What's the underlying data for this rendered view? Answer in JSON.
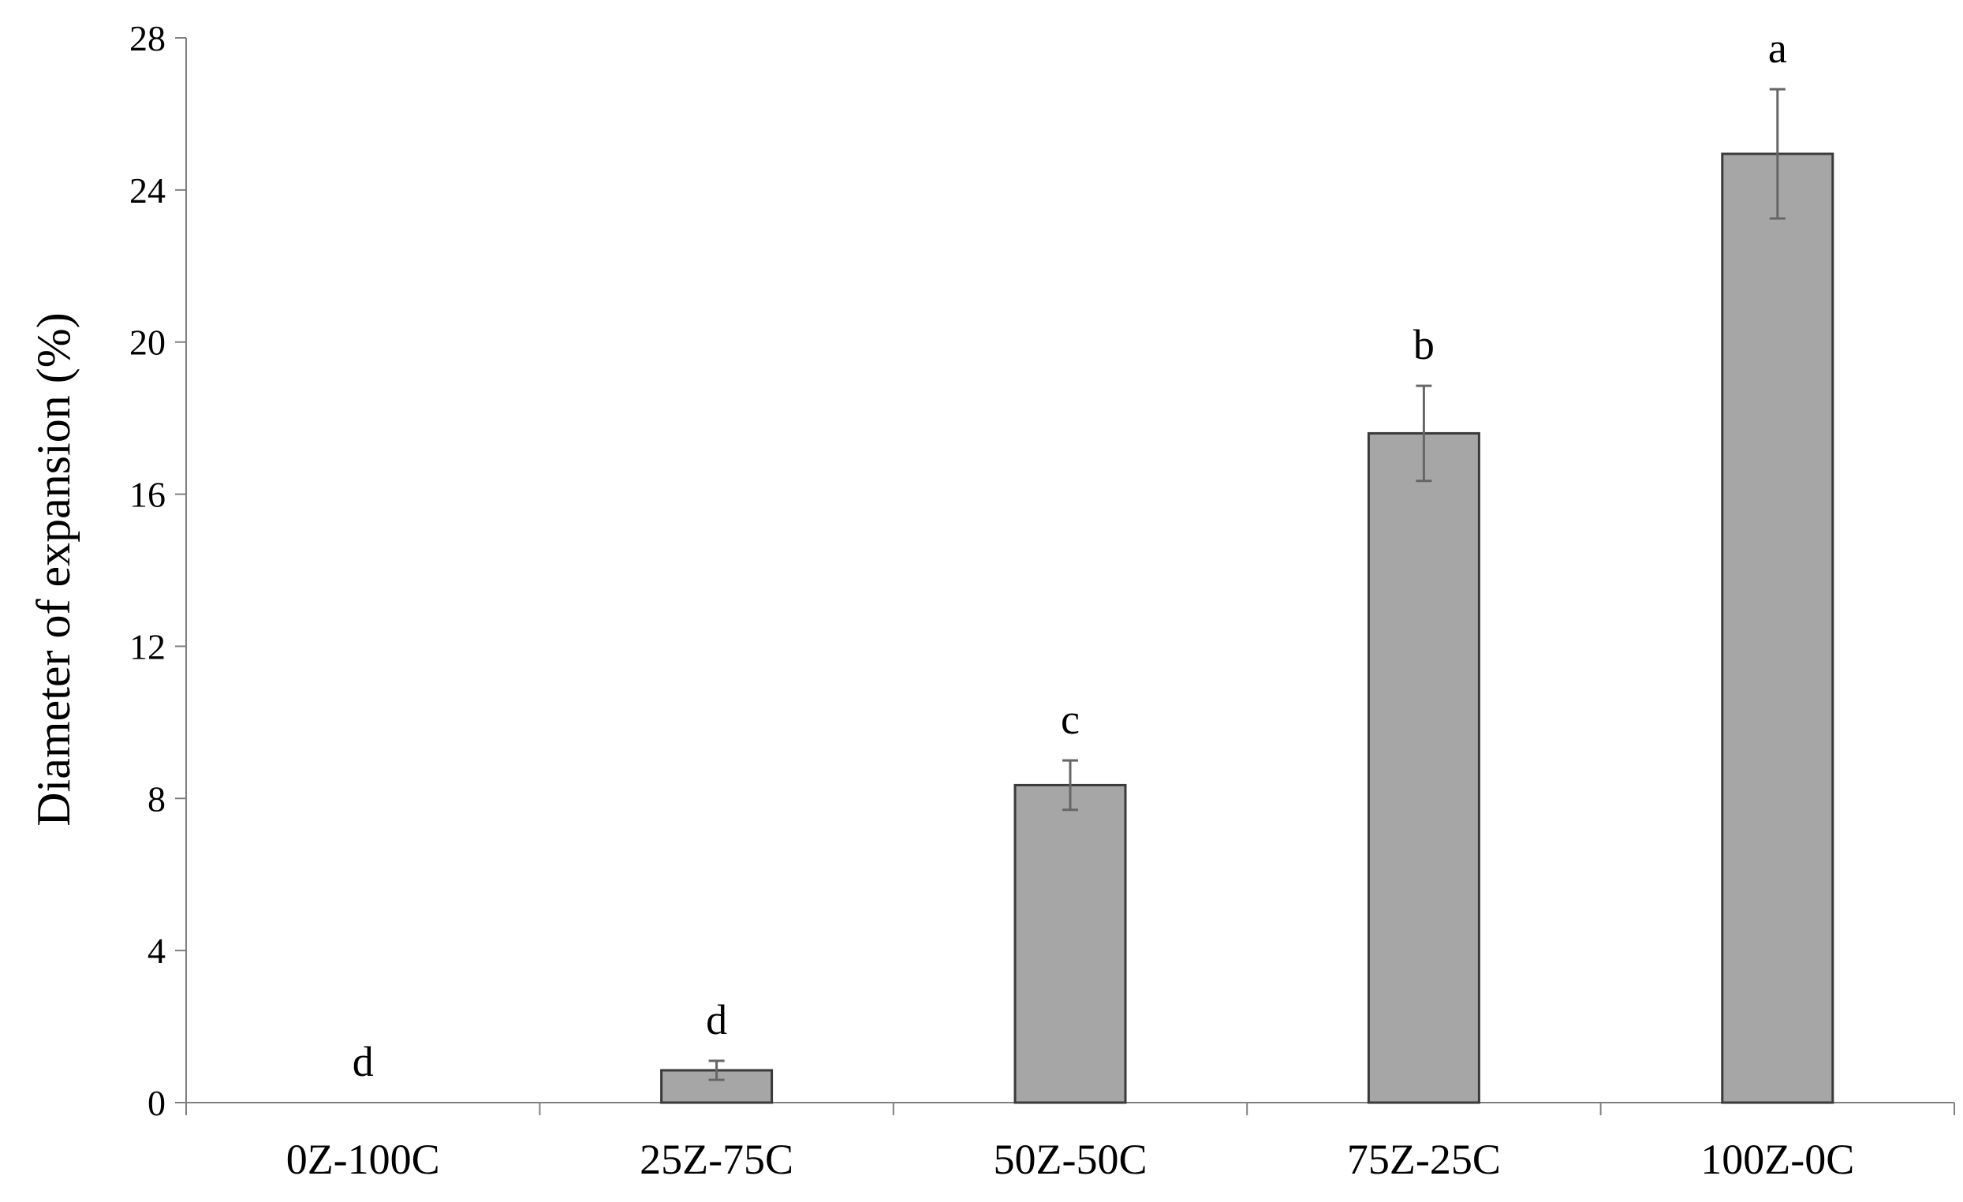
{
  "chart_data": {
    "type": "bar",
    "title": "",
    "xlabel": "",
    "ylabel": "Diameter of expansion (%)",
    "ylim": [
      0,
      28
    ],
    "yticks": [
      0,
      4,
      8,
      12,
      16,
      20,
      24,
      28
    ],
    "grid": false,
    "legend": "none",
    "bar_color": "#a6a6a6",
    "categories": [
      "0Z-100C",
      "25Z-75C",
      "50Z-50C",
      "75Z-25C",
      "100Z-0C"
    ],
    "values": [
      0,
      0.85,
      8.35,
      17.6,
      24.95
    ],
    "errors": [
      0,
      0.25,
      0.65,
      1.25,
      1.7
    ],
    "annotations": [
      "d",
      "d",
      "c",
      "b",
      "a"
    ]
  }
}
